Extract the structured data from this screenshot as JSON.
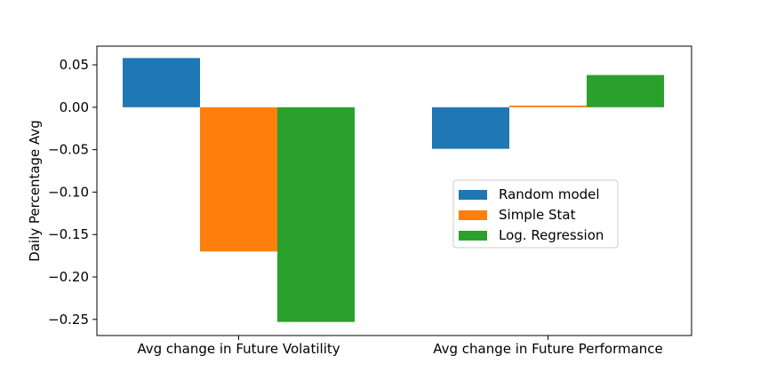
{
  "chart_data": {
    "type": "bar",
    "title": "",
    "xlabel": "",
    "ylabel": "Daily Percentage Avg",
    "categories": [
      "Avg change in Future Volatility",
      "Avg change in Future Performance"
    ],
    "series": [
      {
        "name": "Random model",
        "color": "#1f77b4",
        "values": [
          0.058,
          -0.049
        ]
      },
      {
        "name": "Simple Stat",
        "color": "#ff7f0e",
        "values": [
          -0.17,
          0.002
        ]
      },
      {
        "name": "Log. Regression",
        "color": "#2ca02c",
        "values": [
          -0.253,
          0.038
        ]
      }
    ],
    "ylim": [
      -0.269,
      0.072
    ],
    "yticks": [
      0.05,
      0.0,
      -0.05,
      -0.1,
      -0.15,
      -0.2,
      -0.25
    ],
    "ytick_labels": [
      "0.05",
      "0.00",
      "−0.05",
      "−0.10",
      "−0.15",
      "−0.20",
      "−0.25"
    ],
    "grid": false,
    "legend_position": "center-right"
  }
}
